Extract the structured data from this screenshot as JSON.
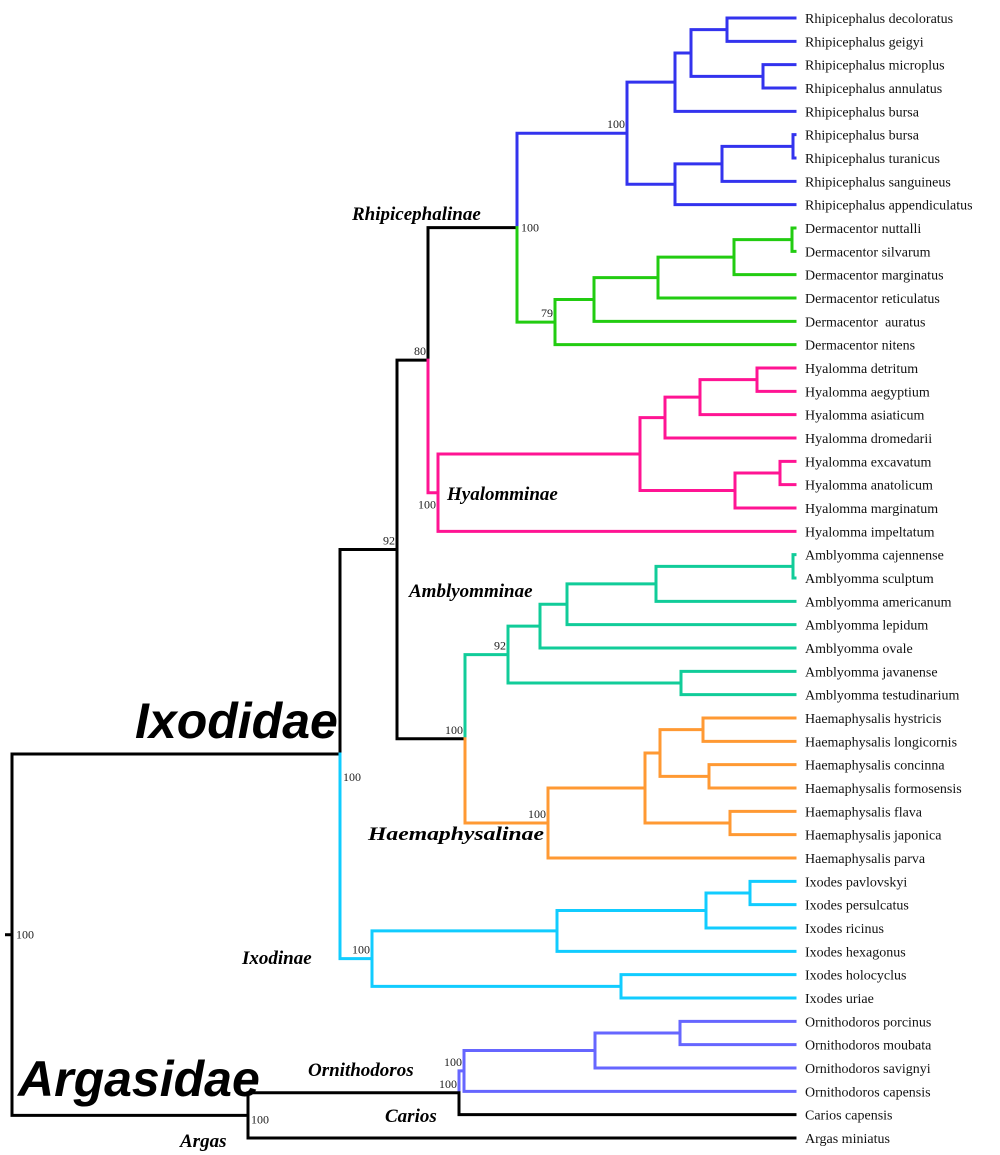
{
  "colors": {
    "black": "#000000",
    "blue": "#3333ee",
    "green": "#22cc11",
    "pink": "#ff1493",
    "teal": "#11cc99",
    "orange": "#ff9933",
    "cyan": "#11ccff",
    "purple": "#6666ff"
  },
  "clade_labels": {
    "ixodidae": "Ixodidae",
    "argasidae": "Argasidae",
    "rhipicephalinae": "Rhipicephalinae",
    "hyalomminae": "Hyalomminae",
    "amblyomminae": "Amblyomminae",
    "haemaphysalinae": "Haemaphysalinae",
    "ixodinae": "Ixodinae",
    "ornithodoros": "Ornithodoros",
    "carios": "Carios",
    "argas": "Argas"
  },
  "bootstraps": [
    "100",
    "100",
    "92",
    "80",
    "100",
    "100",
    "79",
    "100",
    "100",
    "92",
    "100",
    "100",
    "100",
    "100",
    "100"
  ],
  "leaves": [
    "Rhipicephalus decoloratus",
    "Rhipicephalus geigyi",
    "Rhipicephalus microplus",
    "Rhipicephalus annulatus",
    "Rhipicephalus bursa",
    "Rhipicephalus bursa",
    "Rhipicephalus turanicus",
    "Rhipicephalus sanguineus",
    "Rhipicephalus appendiculatus",
    "Dermacentor nuttalli",
    "Dermacentor silvarum",
    "Dermacentor marginatus",
    "Dermacentor reticulatus",
    "Dermacentor  auratus",
    "Dermacentor nitens",
    "Hyalomma detritum",
    "Hyalomma aegyptium",
    "Hyalomma asiaticum",
    "Hyalomma dromedarii",
    "Hyalomma excavatum",
    "Hyalomma anatolicum",
    "Hyalomma marginatum",
    "Hyalomma impeltatum",
    "Amblyomma cajennense",
    "Amblyomma sculptum",
    "Amblyomma americanum",
    "Amblyomma lepidum",
    "Amblyomma ovale",
    "Amblyomma javanense",
    "Amblyomma testudinarium",
    "Haemaphysalis hystricis",
    "Haemaphysalis longicornis",
    "Haemaphysalis concinna",
    "Haemaphysalis formosensis",
    "Haemaphysalis flava",
    "Haemaphysalis japonica",
    "Haemaphysalis parva",
    "Ixodes pavlovskyi",
    "Ixodes persulcatus",
    "Ixodes ricinus",
    "Ixodes hexagonus",
    "Ixodes holocyclus",
    "Ixodes uriae",
    "Ornithodoros porcinus",
    "Ornithodoros moubata",
    "Ornithodoros savignyi",
    "Ornithodoros capensis",
    "Carios capensis",
    "Argas miniatus"
  ]
}
